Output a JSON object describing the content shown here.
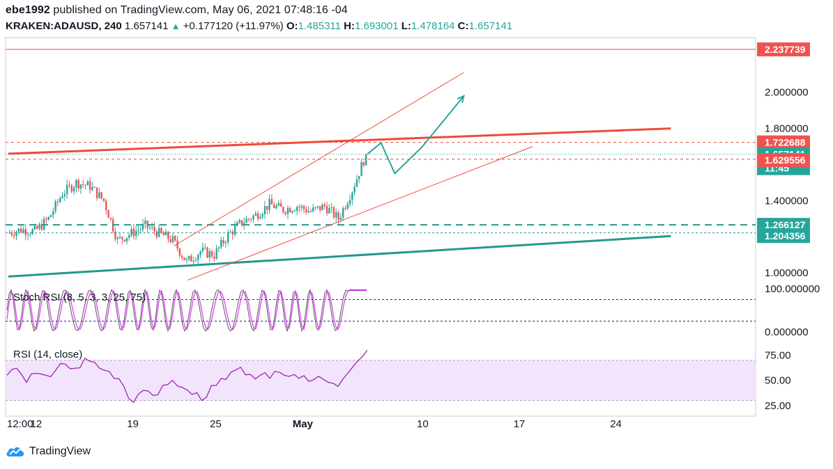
{
  "header": {
    "author": "ebe1992",
    "published_text": "published on TradingView.com, May 06, 2021 07:48:16 -04",
    "symbol": "KRAKEN:ADAUSD, 240",
    "last": "1.657141",
    "change": "+0.177120 (+11.97%)",
    "open_label": "O:",
    "open": "1.485311",
    "high_label": "H:",
    "high": "1.693001",
    "low_label": "L:",
    "low": "1.478164",
    "close_label": "C:",
    "close": "1.657141"
  },
  "footer": {
    "brand": "TradingView"
  },
  "colors": {
    "up": "#26a69a",
    "down": "#ef5350",
    "red_line": "#f0493a",
    "teal_line": "#22998a",
    "rsi": "#9c27b0",
    "stoch_k": "#555555",
    "stoch_d": "#e040fb",
    "rsi_band": "#f2e4fb"
  },
  "price_tags": {
    "top": "2.237739",
    "resistance": "1.722688",
    "last": "1.657141",
    "countdown": "11:45",
    "support_red": "1.629556",
    "dashed_green": "1.266127",
    "teal_line": "1.204356"
  },
  "chart_data": [
    {
      "type": "candlestick",
      "series_name": "KRAKEN:ADAUSD, 240",
      "x_ticks": [
        "12:00",
        "12",
        "19",
        "25",
        "May",
        "10",
        "17",
        "24"
      ],
      "y_ticks": [
        "2.000000",
        "1.800000",
        "1.400000",
        "1.000000"
      ],
      "ylim": [
        0.97,
        2.28
      ],
      "close_path": [
        [
          "Apr 10",
          1.22
        ],
        [
          "Apr 11",
          1.24
        ],
        [
          "Apr 12",
          1.23
        ],
        [
          "Apr 13",
          1.3
        ],
        [
          "Apr 14",
          1.44
        ],
        [
          "Apr 15",
          1.5
        ],
        [
          "Apr 16",
          1.48
        ],
        [
          "Apr 17",
          1.4
        ],
        [
          "Apr 18",
          1.18
        ],
        [
          "Apr 19",
          1.22
        ],
        [
          "Apr 20",
          1.26
        ],
        [
          "Apr 21",
          1.22
        ],
        [
          "Apr 22",
          1.18
        ],
        [
          "Apr 23",
          1.06
        ],
        [
          "Apr 24",
          1.12
        ],
        [
          "Apr 25",
          1.1
        ],
        [
          "Apr 26",
          1.21
        ],
        [
          "Apr 27",
          1.28
        ],
        [
          "Apr 28",
          1.32
        ],
        [
          "Apr 29",
          1.38
        ],
        [
          "Apr 30",
          1.35
        ],
        [
          "May 01",
          1.37
        ],
        [
          "May 02",
          1.34
        ],
        [
          "May 03",
          1.37
        ],
        [
          "May 04",
          1.3
        ],
        [
          "May 05",
          1.46
        ],
        [
          "May 06",
          1.657
        ]
      ],
      "projection": [
        [
          "May 06",
          1.657
        ],
        [
          "May 07",
          1.72
        ],
        [
          "May 08",
          1.55
        ],
        [
          "May 10",
          1.7
        ],
        [
          "May 13",
          1.98
        ]
      ],
      "lines": {
        "red_resistance": [
          [
            "Apr 10",
            1.66
          ],
          [
            "May 28",
            1.8
          ]
        ],
        "teal_support": [
          [
            "Apr 10",
            0.98
          ],
          [
            "May 28",
            1.204
          ]
        ],
        "channel_upper": [
          [
            "Apr 22",
            1.15
          ],
          [
            "May 13",
            2.11
          ]
        ],
        "channel_lower": [
          [
            "Apr 23",
            0.96
          ],
          [
            "May 18",
            1.7
          ]
        ],
        "horizontal": [
          2.237739,
          1.722688,
          1.657141,
          1.629556,
          1.266127,
          1.204356
        ]
      }
    },
    {
      "type": "line",
      "title": "Stoch RSI (8, 5, 3, 3, 25, 75)",
      "y_ticks": [
        "100.000000",
        "0.000000"
      ],
      "ylim": [
        -5,
        105
      ],
      "levels": [
        75,
        25
      ],
      "note": "oscillates 0–100, ends near 100"
    },
    {
      "type": "line",
      "title": "RSI (14, close)",
      "y_ticks": [
        "75.00",
        "50.00",
        "25.00"
      ],
      "ylim": [
        20,
        85
      ],
      "band": [
        30,
        70
      ],
      "values": [
        55,
        62,
        48,
        57,
        55,
        60,
        66,
        62,
        72,
        68,
        60,
        52,
        44,
        28,
        40,
        35,
        45,
        50,
        43,
        36,
        30,
        45,
        52,
        58,
        63,
        56,
        55,
        52,
        58,
        54,
        52,
        49,
        54,
        48,
        44,
        57,
        69,
        80
      ]
    }
  ]
}
